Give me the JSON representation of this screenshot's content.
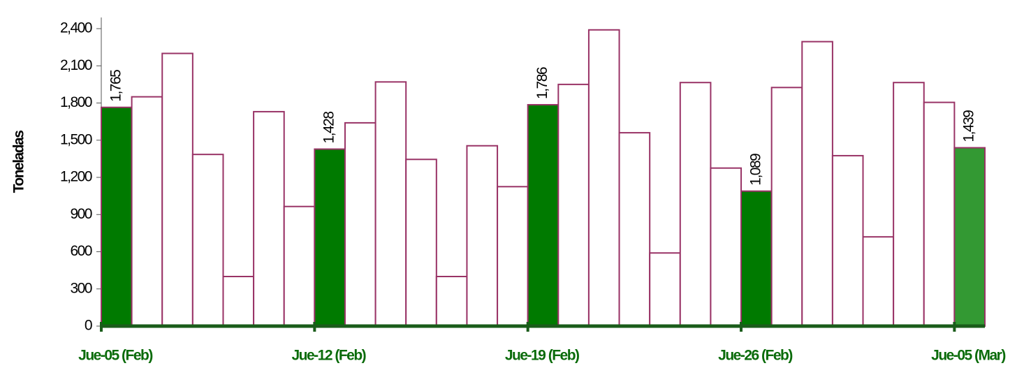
{
  "chart_data": {
    "type": "bar",
    "y_label": "Toneladas",
    "categories": [
      "Jue-05 (Feb)",
      null,
      null,
      null,
      null,
      null,
      null,
      "Jue-12 (Feb)",
      null,
      null,
      null,
      null,
      null,
      null,
      "Jue-19 (Feb)",
      null,
      null,
      null,
      null,
      null,
      null,
      "Jue-26 (Feb)",
      null,
      null,
      null,
      null,
      null,
      null,
      "Jue-05 (Mar)"
    ],
    "values": [
      1765,
      1850,
      2200,
      1385,
      400,
      1730,
      965,
      1428,
      1640,
      1970,
      1345,
      400,
      1455,
      1125,
      1786,
      1950,
      2390,
      1560,
      590,
      1965,
      1275,
      1089,
      1925,
      2295,
      1375,
      720,
      1965,
      1805,
      1439
    ],
    "value_labels": [
      "1,765",
      null,
      null,
      null,
      null,
      null,
      null,
      "1,428",
      null,
      null,
      null,
      null,
      null,
      null,
      "1,786",
      null,
      null,
      null,
      null,
      null,
      null,
      "1,089",
      null,
      null,
      null,
      null,
      null,
      null,
      "1,439"
    ],
    "colors": [
      "#007a00",
      "#ffffff",
      "#ffffff",
      "#ffffff",
      "#ffffff",
      "#ffffff",
      "#ffffff",
      "#007a00",
      "#ffffff",
      "#ffffff",
      "#ffffff",
      "#ffffff",
      "#ffffff",
      "#ffffff",
      "#007a00",
      "#ffffff",
      "#ffffff",
      "#ffffff",
      "#ffffff",
      "#ffffff",
      "#ffffff",
      "#007a00",
      "#ffffff",
      "#ffffff",
      "#ffffff",
      "#ffffff",
      "#ffffff",
      "#ffffff",
      "#339933"
    ],
    "edge_color": "#993366",
    "ylim": [
      0,
      2400
    ],
    "yticks": [
      0,
      300,
      600,
      900,
      {
        "value": 1200,
        "label": "1,200"
      },
      {
        "value": 1500,
        "label": "1,500"
      },
      {
        "value": 1800,
        "label": "1,800"
      },
      {
        "value": 2100,
        "label": "2,100"
      },
      {
        "value": 2400,
        "label": "2,400"
      }
    ],
    "grid": false
  }
}
